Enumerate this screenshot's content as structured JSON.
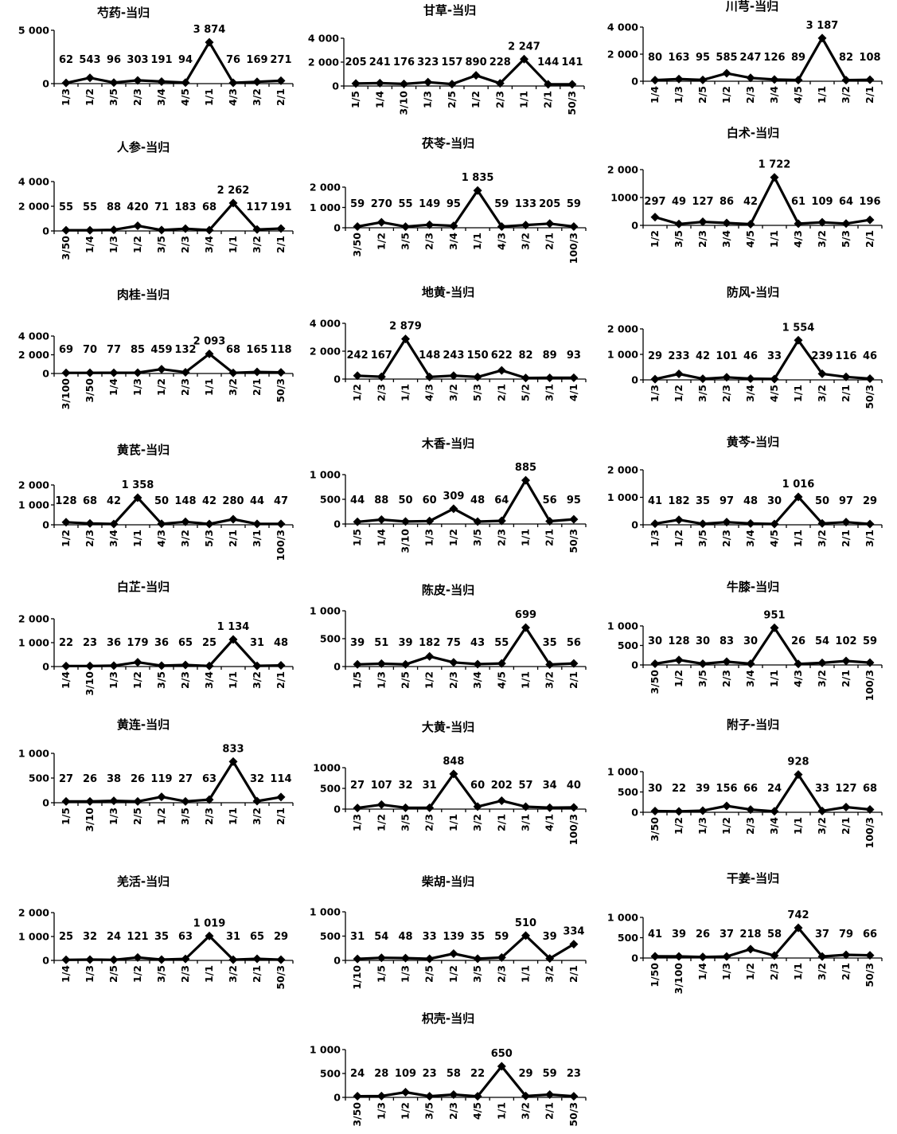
{
  "chart_data": [
    {
      "type": "line",
      "title": "芍药-当归",
      "categories": [
        "1/3",
        "1/2",
        "3/5",
        "2/3",
        "3/4",
        "4/5",
        "1/1",
        "4/3",
        "3/2",
        "2/1"
      ],
      "values": [
        62,
        543,
        96,
        303,
        191,
        94,
        3874,
        76,
        169,
        271
      ],
      "labels": [
        "62",
        "543",
        "96",
        "303",
        "191",
        "94",
        "3 874",
        "76",
        "169",
        "271"
      ],
      "ylim": [
        0,
        5000
      ],
      "yticks": [
        0,
        5000
      ],
      "yticklabels": [
        "0",
        "5 000"
      ]
    },
    {
      "type": "line",
      "title": "甘草-当归",
      "categories": [
        "1/5",
        "1/4",
        "3/10",
        "1/3",
        "2/5",
        "1/2",
        "2/3",
        "1/1",
        "2/1",
        "50/3"
      ],
      "values": [
        205,
        241,
        176,
        323,
        157,
        890,
        228,
        2247,
        144,
        141
      ],
      "labels": [
        "205",
        "241",
        "176",
        "323",
        "157",
        "890",
        "228",
        "2 247",
        "144",
        "141"
      ],
      "ylim": [
        0,
        4000
      ],
      "yticks": [
        0,
        2000,
        4000
      ],
      "yticklabels": [
        "0",
        "2 000",
        "4 000"
      ]
    },
    {
      "type": "line",
      "title": "川芎-当归",
      "categories": [
        "1/4",
        "1/3",
        "2/5",
        "1/2",
        "2/3",
        "3/4",
        "4/5",
        "1/1",
        "3/2",
        "2/1"
      ],
      "values": [
        80,
        163,
        95,
        585,
        247,
        126,
        89,
        3187,
        82,
        108
      ],
      "labels": [
        "80",
        "163",
        "95",
        "585",
        "247",
        "126",
        "89",
        "3 187",
        "82",
        "108"
      ],
      "ylim": [
        0,
        4000
      ],
      "yticks": [
        0,
        2000,
        4000
      ],
      "yticklabels": [
        "0",
        "2 000",
        "4 000"
      ]
    },
    {
      "type": "line",
      "title": "人参-当归",
      "categories": [
        "3/50",
        "1/4",
        "1/3",
        "1/2",
        "3/5",
        "2/3",
        "3/4",
        "1/1",
        "3/2",
        "2/1"
      ],
      "values": [
        55,
        55,
        88,
        420,
        71,
        183,
        68,
        2262,
        117,
        191
      ],
      "labels": [
        "55",
        "55",
        "88",
        "420",
        "71",
        "183",
        "68",
        "2 262",
        "117",
        "191"
      ],
      "ylim": [
        0,
        4000
      ],
      "yticks": [
        0,
        2000,
        4000
      ],
      "yticklabels": [
        "0",
        "2 000",
        "4 000"
      ]
    },
    {
      "type": "line",
      "title": "茯苓-当归",
      "categories": [
        "3/50",
        "1/2",
        "3/5",
        "2/3",
        "3/4",
        "1/1",
        "4/3",
        "3/2",
        "2/1",
        "100/3"
      ],
      "values": [
        59,
        270,
        55,
        149,
        95,
        1835,
        59,
        133,
        205,
        59
      ],
      "labels": [
        "59",
        "270",
        "55",
        "149",
        "95",
        "1 835",
        "59",
        "133",
        "205",
        "59"
      ],
      "ylim": [
        0,
        2000
      ],
      "yticks": [
        0,
        1000,
        2000
      ],
      "yticklabels": [
        "0",
        "1 000",
        "2 000"
      ]
    },
    {
      "type": "line",
      "title": "白术-当归",
      "categories": [
        "1/2",
        "3/5",
        "2/3",
        "3/4",
        "4/5",
        "1/1",
        "4/3",
        "3/2",
        "5/3",
        "2/1"
      ],
      "values": [
        297,
        49,
        127,
        86,
        42,
        1722,
        61,
        109,
        64,
        196
      ],
      "labels": [
        "297",
        "49",
        "127",
        "86",
        "42",
        "1 722",
        "61",
        "109",
        "64",
        "196"
      ],
      "ylim": [
        0,
        2000
      ],
      "yticks": [
        0,
        1000,
        2000
      ],
      "yticklabels": [
        "0",
        "1000",
        "2 000"
      ]
    },
    {
      "type": "line",
      "title": "肉桂-当归",
      "categories": [
        "3/100",
        "3/50",
        "1/4",
        "1/3",
        "1/2",
        "2/3",
        "1/1",
        "3/2",
        "2/1",
        "50/3"
      ],
      "values": [
        69,
        70,
        77,
        85,
        459,
        132,
        2093,
        68,
        165,
        118
      ],
      "labels": [
        "69",
        "70",
        "77",
        "85",
        "459",
        "132",
        "2 093",
        "68",
        "165",
        "118"
      ],
      "ylim": [
        0,
        4000
      ],
      "yticks": [
        0,
        2000,
        4000
      ],
      "yticklabels": [
        "0",
        "2 000",
        "4 000"
      ]
    },
    {
      "type": "line",
      "title": "地黄-当归",
      "categories": [
        "1/2",
        "2/3",
        "1/1",
        "4/3",
        "3/2",
        "5/3",
        "2/1",
        "5/2",
        "3/1",
        "4/1"
      ],
      "values": [
        242,
        167,
        2879,
        148,
        243,
        150,
        622,
        82,
        89,
        93
      ],
      "labels": [
        "242",
        "167",
        "2 879",
        "148",
        "243",
        "150",
        "622",
        "82",
        "89",
        "93"
      ],
      "ylim": [
        0,
        4000
      ],
      "yticks": [
        0,
        2000,
        4000
      ],
      "yticklabels": [
        "0",
        "2 000",
        "4 000"
      ]
    },
    {
      "type": "line",
      "title": "防风-当归",
      "categories": [
        "1/3",
        "1/2",
        "3/5",
        "2/3",
        "3/4",
        "4/5",
        "1/1",
        "3/2",
        "2/1",
        "50/3"
      ],
      "values": [
        29,
        233,
        42,
        101,
        46,
        33,
        1554,
        239,
        116,
        46
      ],
      "labels": [
        "29",
        "233",
        "42",
        "101",
        "46",
        "33",
        "1 554",
        "239",
        "116",
        "46"
      ],
      "ylim": [
        0,
        2000
      ],
      "yticks": [
        0,
        1000,
        2000
      ],
      "yticklabels": [
        "0",
        "1 000",
        "2 000"
      ]
    },
    {
      "type": "line",
      "title": "黄芪-当归",
      "categories": [
        "1/2",
        "2/3",
        "3/4",
        "1/1",
        "4/3",
        "3/2",
        "5/3",
        "2/1",
        "3/1",
        "100/3"
      ],
      "values": [
        128,
        68,
        42,
        1358,
        50,
        148,
        42,
        280,
        44,
        47
      ],
      "labels": [
        "128",
        "68",
        "42",
        "1 358",
        "50",
        "148",
        "42",
        "280",
        "44",
        "47"
      ],
      "ylim": [
        0,
        2000
      ],
      "yticks": [
        0,
        1000,
        2000
      ],
      "yticklabels": [
        "0",
        "1 000",
        "2 000"
      ]
    },
    {
      "type": "line",
      "title": "木香-当归",
      "categories": [
        "1/5",
        "1/4",
        "3/10",
        "1/3",
        "1/2",
        "3/5",
        "2/3",
        "1/1",
        "2/1",
        "50/3"
      ],
      "values": [
        44,
        88,
        50,
        60,
        309,
        48,
        64,
        885,
        56,
        95
      ],
      "labels": [
        "44",
        "88",
        "50",
        "60",
        "309",
        "48",
        "64",
        "885",
        "56",
        "95"
      ],
      "ylim": [
        0,
        1000
      ],
      "yticks": [
        0,
        500,
        1000
      ],
      "yticklabels": [
        "0",
        "500",
        "1 000"
      ]
    },
    {
      "type": "line",
      "title": "黄芩-当归",
      "categories": [
        "1/3",
        "1/2",
        "3/5",
        "2/3",
        "3/4",
        "4/5",
        "1/1",
        "3/2",
        "2/1",
        "3/1"
      ],
      "values": [
        41,
        182,
        35,
        97,
        48,
        30,
        1016,
        50,
        97,
        29
      ],
      "labels": [
        "41",
        "182",
        "35",
        "97",
        "48",
        "30",
        "1 016",
        "50",
        "97",
        "29"
      ],
      "ylim": [
        0,
        2000
      ],
      "yticks": [
        0,
        1000,
        2000
      ],
      "yticklabels": [
        "0",
        "1 000",
        "2 000"
      ]
    },
    {
      "type": "line",
      "title": "白芷-当归",
      "categories": [
        "1/4",
        "3/10",
        "1/3",
        "1/2",
        "3/5",
        "2/3",
        "3/4",
        "1/1",
        "3/2",
        "2/1"
      ],
      "values": [
        22,
        23,
        36,
        179,
        36,
        65,
        25,
        1134,
        31,
        48
      ],
      "labels": [
        "22",
        "23",
        "36",
        "179",
        "36",
        "65",
        "25",
        "1 134",
        "31",
        "48"
      ],
      "ylim": [
        0,
        2000
      ],
      "yticks": [
        0,
        1000,
        2000
      ],
      "yticklabels": [
        "0",
        "1 000",
        "2 000"
      ]
    },
    {
      "type": "line",
      "title": "陈皮-当归",
      "categories": [
        "1/5",
        "1/3",
        "2/5",
        "1/2",
        "2/3",
        "3/4",
        "4/5",
        "1/1",
        "3/2",
        "2/1"
      ],
      "values": [
        39,
        51,
        39,
        182,
        75,
        43,
        55,
        699,
        35,
        56
      ],
      "labels": [
        "39",
        "51",
        "39",
        "182",
        "75",
        "43",
        "55",
        "699",
        "35",
        "56"
      ],
      "ylim": [
        0,
        1000
      ],
      "yticks": [
        0,
        500,
        1000
      ],
      "yticklabels": [
        "0",
        "500",
        "1 000"
      ]
    },
    {
      "type": "line",
      "title": "牛膝-当归",
      "categories": [
        "3/50",
        "1/2",
        "3/5",
        "2/3",
        "3/4",
        "1/1",
        "4/3",
        "3/2",
        "2/1",
        "100/3"
      ],
      "values": [
        30,
        128,
        30,
        83,
        30,
        951,
        26,
        54,
        102,
        59
      ],
      "labels": [
        "30",
        "128",
        "30",
        "83",
        "30",
        "951",
        "26",
        "54",
        "102",
        "59"
      ],
      "ylim": [
        0,
        1000
      ],
      "yticks": [
        0,
        500,
        1000
      ],
      "yticklabels": [
        "0",
        "500",
        "1 000"
      ]
    },
    {
      "type": "line",
      "title": "黄连-当归",
      "categories": [
        "1/5",
        "3/10",
        "1/3",
        "2/5",
        "1/2",
        "3/5",
        "2/3",
        "1/1",
        "3/2",
        "2/1"
      ],
      "values": [
        27,
        26,
        38,
        26,
        119,
        27,
        63,
        833,
        32,
        114
      ],
      "labels": [
        "27",
        "26",
        "38",
        "26",
        "119",
        "27",
        "63",
        "833",
        "32",
        "114"
      ],
      "ylim": [
        0,
        1000
      ],
      "yticks": [
        0,
        500,
        1000
      ],
      "yticklabels": [
        "0",
        "500",
        "1 000"
      ]
    },
    {
      "type": "line",
      "title": "大黄-当归",
      "categories": [
        "1/3",
        "1/2",
        "3/5",
        "2/3",
        "1/1",
        "3/2",
        "2/1",
        "3/1",
        "4/1",
        "100/3"
      ],
      "values": [
        27,
        107,
        32,
        31,
        848,
        60,
        202,
        57,
        34,
        40
      ],
      "labels": [
        "27",
        "107",
        "32",
        "31",
        "848",
        "60",
        "202",
        "57",
        "34",
        "40"
      ],
      "ylim": [
        0,
        1000
      ],
      "yticks": [
        0,
        500,
        1000
      ],
      "yticklabels": [
        "0",
        "500",
        "1000"
      ]
    },
    {
      "type": "line",
      "title": "附子-当归",
      "categories": [
        "3/50",
        "1/2",
        "1/3",
        "1/2",
        "2/3",
        "3/4",
        "1/1",
        "3/2",
        "2/1",
        "100/3"
      ],
      "values": [
        30,
        22,
        39,
        156,
        66,
        24,
        928,
        33,
        127,
        68
      ],
      "labels": [
        "30",
        "22",
        "39",
        "156",
        "66",
        "24",
        "928",
        "33",
        "127",
        "68"
      ],
      "ylim": [
        0,
        1000
      ],
      "yticks": [
        0,
        500,
        1000
      ],
      "yticklabels": [
        "0",
        "500",
        "1 000"
      ]
    },
    {
      "type": "line",
      "title": "羌活-当归",
      "categories": [
        "1/4",
        "1/3",
        "2/5",
        "1/2",
        "3/5",
        "2/3",
        "1/1",
        "3/2",
        "2/1",
        "50/3"
      ],
      "values": [
        25,
        32,
        24,
        121,
        35,
        63,
        1019,
        31,
        65,
        29
      ],
      "labels": [
        "25",
        "32",
        "24",
        "121",
        "35",
        "63",
        "1 019",
        "31",
        "65",
        "29"
      ],
      "ylim": [
        0,
        2000
      ],
      "yticks": [
        0,
        1000,
        2000
      ],
      "yticklabels": [
        "0",
        "1 000",
        "2 000"
      ]
    },
    {
      "type": "line",
      "title": "柴胡-当归",
      "categories": [
        "1/10",
        "1/5",
        "1/3",
        "2/5",
        "1/2",
        "3/5",
        "2/3",
        "1/1",
        "3/2",
        "2/1"
      ],
      "values": [
        31,
        54,
        48,
        33,
        139,
        35,
        59,
        510,
        39,
        334
      ],
      "labels": [
        "31",
        "54",
        "48",
        "33",
        "139",
        "35",
        "59",
        "510",
        "39",
        "334"
      ],
      "ylim": [
        0,
        1000
      ],
      "yticks": [
        0,
        500,
        1000
      ],
      "yticklabels": [
        "0",
        "500",
        "1 000"
      ]
    },
    {
      "type": "line",
      "title": "干姜-当归",
      "categories": [
        "1/50",
        "3/100",
        "1/4",
        "1/3",
        "1/2",
        "2/3",
        "1/1",
        "3/2",
        "2/1",
        "50/3"
      ],
      "values": [
        41,
        39,
        26,
        37,
        218,
        58,
        742,
        37,
        79,
        66
      ],
      "labels": [
        "41",
        "39",
        "26",
        "37",
        "218",
        "58",
        "742",
        "37",
        "79",
        "66"
      ],
      "ylim": [
        0,
        1000
      ],
      "yticks": [
        0,
        500,
        1000
      ],
      "yticklabels": [
        "0",
        "500",
        "1 000"
      ]
    },
    {
      "type": "line",
      "title": "枳壳-当归",
      "categories": [
        "3/50",
        "1/3",
        "1/2",
        "3/5",
        "2/3",
        "4/5",
        "1/1",
        "3/2",
        "2/1",
        "50/3"
      ],
      "values": [
        24,
        28,
        109,
        23,
        58,
        22,
        650,
        29,
        59,
        23
      ],
      "labels": [
        "24",
        "28",
        "109",
        "23",
        "58",
        "22",
        "650",
        "29",
        "59",
        "23"
      ],
      "ylim": [
        0,
        1000
      ],
      "yticks": [
        0,
        500,
        1000
      ],
      "yticklabels": [
        "0",
        "500",
        "1 000"
      ]
    }
  ]
}
